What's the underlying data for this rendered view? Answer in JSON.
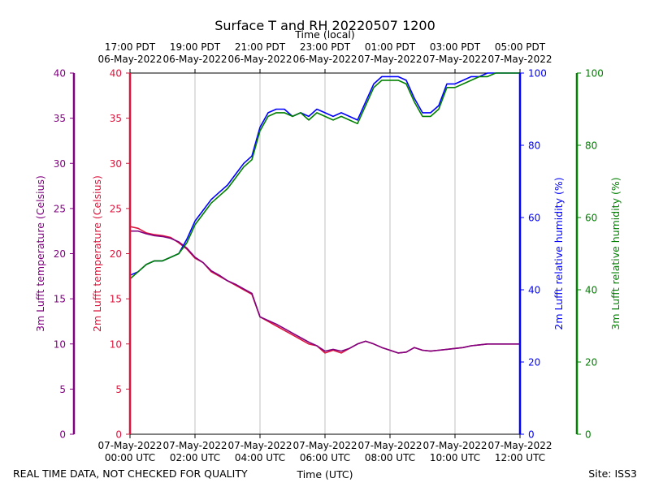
{
  "chart_data": {
    "type": "line",
    "title": "Surface T and RH 20220507 1200",
    "top_axis_title": "Time (local)",
    "xlabel": "Time (UTC)",
    "footer_left": "REAL TIME DATA, NOT CHECKED FOR QUALITY",
    "footer_right": "Site: ISS3",
    "x_range_hours_utc": [
      0,
      12
    ],
    "bottom_ticks": [
      {
        "hour": 0,
        "date": "07-May-2022",
        "time": "00:00 UTC"
      },
      {
        "hour": 2,
        "date": "07-May-2022",
        "time": "02:00 UTC"
      },
      {
        "hour": 4,
        "date": "07-May-2022",
        "time": "04:00 UTC"
      },
      {
        "hour": 6,
        "date": "07-May-2022",
        "time": "06:00 UTC"
      },
      {
        "hour": 8,
        "date": "07-May-2022",
        "time": "08:00 UTC"
      },
      {
        "hour": 10,
        "date": "07-May-2022",
        "time": "10:00 UTC"
      },
      {
        "hour": 12,
        "date": "07-May-2022",
        "time": "12:00 UTC"
      }
    ],
    "top_ticks": [
      {
        "hour": 0,
        "time": "17:00 PDT",
        "date": "06-May-2022"
      },
      {
        "hour": 2,
        "time": "19:00 PDT",
        "date": "06-May-2022"
      },
      {
        "hour": 4,
        "time": "21:00 PDT",
        "date": "06-May-2022"
      },
      {
        "hour": 6,
        "time": "23:00 PDT",
        "date": "06-May-2022"
      },
      {
        "hour": 8,
        "time": "01:00 PDT",
        "date": "07-May-2022"
      },
      {
        "hour": 10,
        "time": "03:00 PDT",
        "date": "07-May-2022"
      },
      {
        "hour": 12,
        "time": "05:00 PDT",
        "date": "07-May-2022"
      }
    ],
    "axes": {
      "t3m": {
        "label": "3m Lufft temperature (Celsius)",
        "range": [
          0,
          40
        ],
        "ticks": [
          0,
          5,
          10,
          15,
          20,
          25,
          30,
          35,
          40
        ],
        "color": "#800080"
      },
      "t2m": {
        "label": "2m Lufft temperature (Celsius)",
        "range": [
          0,
          40
        ],
        "ticks": [
          0,
          5,
          10,
          15,
          20,
          25,
          30,
          35,
          40
        ],
        "color": "#dc143c"
      },
      "rh2m": {
        "label": "2m Lufft relative humidity (%)",
        "range": [
          0,
          100
        ],
        "ticks": [
          0,
          20,
          40,
          60,
          80,
          100
        ],
        "color": "#0000ff"
      },
      "rh3m": {
        "label": "3m Lufft relative humidity (%)",
        "range": [
          0,
          100
        ],
        "ticks": [
          0,
          20,
          40,
          60,
          80,
          100
        ],
        "color": "#008000"
      }
    },
    "hours": [
      0.0,
      0.25,
      0.5,
      0.75,
      1.0,
      1.25,
      1.5,
      1.75,
      2.0,
      2.25,
      2.5,
      2.75,
      3.0,
      3.25,
      3.5,
      3.75,
      4.0,
      4.25,
      4.5,
      4.75,
      5.0,
      5.25,
      5.5,
      5.75,
      6.0,
      6.25,
      6.5,
      6.75,
      7.0,
      7.25,
      7.5,
      7.75,
      8.0,
      8.25,
      8.5,
      8.75,
      9.0,
      9.25,
      9.5,
      9.75,
      10.0,
      10.25,
      10.5,
      10.75,
      11.0,
      11.25,
      11.5,
      11.75,
      12.0
    ],
    "series": [
      {
        "name": "2m temperature",
        "axis": "t2m",
        "color": "#dc143c",
        "values": [
          23.0,
          22.8,
          22.3,
          22.1,
          22.0,
          21.8,
          21.2,
          20.5,
          19.5,
          19.0,
          18.0,
          17.5,
          17.0,
          16.5,
          16.0,
          15.5,
          13.0,
          12.5,
          12.0,
          11.5,
          11.0,
          10.5,
          10.0,
          9.8,
          9.0,
          9.3,
          9.0,
          9.5,
          10.0,
          10.3,
          10.0,
          9.6,
          9.3,
          9.0,
          9.1,
          9.6,
          9.3,
          9.2,
          9.3,
          9.4,
          9.5,
          9.6,
          9.8,
          9.9,
          10.0,
          10.0,
          10.0,
          10.0,
          10.0
        ]
      },
      {
        "name": "3m temperature",
        "axis": "t3m",
        "color": "#800080",
        "values": [
          22.5,
          22.5,
          22.2,
          22.0,
          21.9,
          21.7,
          21.3,
          20.6,
          19.6,
          19.0,
          18.1,
          17.6,
          17.0,
          16.6,
          16.1,
          15.6,
          13.0,
          12.6,
          12.2,
          11.7,
          11.2,
          10.7,
          10.2,
          9.8,
          9.2,
          9.4,
          9.2,
          9.5,
          10.0,
          10.3,
          10.0,
          9.6,
          9.3,
          9.0,
          9.1,
          9.6,
          9.3,
          9.2,
          9.3,
          9.4,
          9.5,
          9.6,
          9.8,
          9.9,
          10.0,
          10.0,
          10.0,
          10.0,
          10.0
        ]
      },
      {
        "name": "2m relative humidity",
        "axis": "rh2m",
        "color": "#0000ff",
        "values": [
          44,
          45,
          47,
          48,
          48,
          49,
          50,
          54,
          59,
          62,
          65,
          67,
          69,
          72,
          75,
          77,
          85,
          89,
          90,
          90,
          88,
          89,
          88,
          90,
          89,
          88,
          89,
          88,
          87,
          92,
          97,
          99,
          99,
          99,
          98,
          93,
          89,
          89,
          91,
          97,
          97,
          98,
          99,
          99,
          100,
          100,
          100,
          100,
          100
        ]
      },
      {
        "name": "3m relative humidity",
        "axis": "rh3m",
        "color": "#008000",
        "values": [
          43,
          45,
          47,
          48,
          48,
          49,
          50,
          53,
          58,
          61,
          64,
          66,
          68,
          71,
          74,
          76,
          84,
          88,
          89,
          89,
          88,
          89,
          87,
          89,
          88,
          87,
          88,
          87,
          86,
          91,
          96,
          98,
          98,
          98,
          97,
          92,
          88,
          88,
          90,
          96,
          96,
          97,
          98,
          99,
          99,
          100,
          100,
          100,
          100
        ]
      }
    ]
  }
}
